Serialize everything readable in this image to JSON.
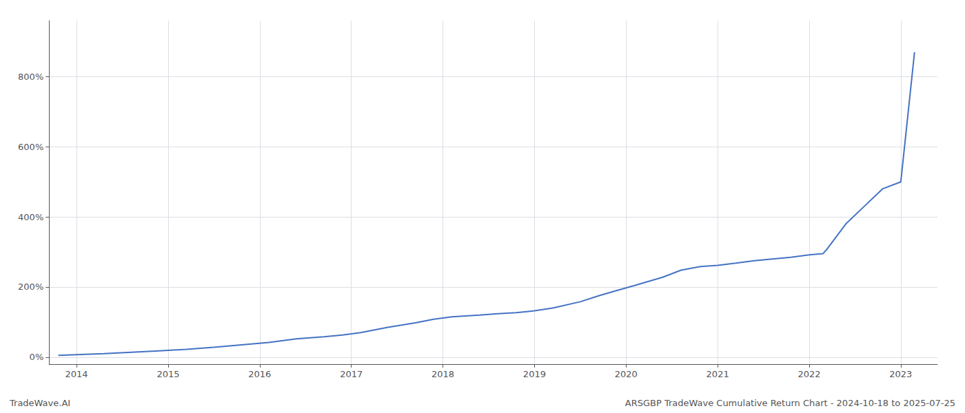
{
  "chart_data": {
    "type": "line",
    "annotations": [
      "TradeWave.AI",
      "ARSGBP TradeWave Cumulative Return Chart - 2024-10-18 to 2025-07-25"
    ],
    "color": "#4472c4",
    "x": [
      2013.8,
      2014.0,
      2014.3,
      2014.6,
      2014.9,
      2015.2,
      2015.5,
      2015.8,
      2016.1,
      2016.4,
      2016.7,
      2016.9,
      2017.1,
      2017.4,
      2017.7,
      2017.9,
      2018.1,
      2018.4,
      2018.6,
      2018.8,
      2019.0,
      2019.2,
      2019.5,
      2019.7,
      2019.9,
      2020.1,
      2020.4,
      2020.6,
      2020.8,
      2021.0,
      2021.2,
      2021.4,
      2021.6,
      2021.8,
      2022.0,
      2022.15,
      2022.2,
      2022.4,
      2022.6,
      2022.8,
      2023.0,
      2023.15
    ],
    "values": [
      5,
      7,
      10,
      14,
      18,
      22,
      28,
      35,
      42,
      52,
      58,
      63,
      70,
      85,
      98,
      108,
      115,
      120,
      124,
      127,
      132,
      140,
      158,
      175,
      190,
      205,
      228,
      248,
      258,
      262,
      268,
      275,
      280,
      285,
      292,
      295,
      310,
      380,
      430,
      480,
      500,
      870
    ],
    "xlim": [
      2013.7,
      2023.4
    ],
    "xticks": [
      2014,
      2015,
      2016,
      2017,
      2018,
      2019,
      2020,
      2021,
      2022,
      2023
    ],
    "ylim": [
      -20,
      960
    ],
    "yticks": [
      {
        "value": 0,
        "label": "0%"
      },
      {
        "value": 200,
        "label": "200%"
      },
      {
        "value": 400,
        "label": "400%"
      },
      {
        "value": 600,
        "label": "600%"
      },
      {
        "value": 800,
        "label": "800%"
      }
    ],
    "grid": true
  }
}
